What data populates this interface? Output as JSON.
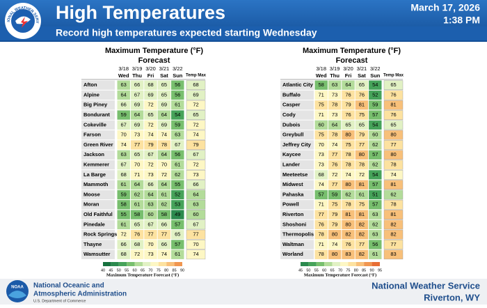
{
  "header": {
    "title": "High Temperatures",
    "subtitle": "Record high temperatures expected starting Wednesday",
    "date": "March 17, 2026",
    "time": "1:38 PM",
    "logo_text": "NATIONAL WEATHER SERVICE"
  },
  "tables": [
    {
      "title": "Maximum Temperature (°F)",
      "subtitle": "Forecast",
      "dates": [
        "3/18",
        "3/19",
        "3/20",
        "3/21",
        "3/22"
      ],
      "days": [
        "Wed",
        "Thu",
        "Fri",
        "Sat",
        "Sun"
      ],
      "max_header": "Temp Max",
      "rows": [
        {
          "name": "Afton",
          "values": [
            63,
            66,
            68,
            65,
            56
          ],
          "max": 68
        },
        {
          "name": "Alpine",
          "values": [
            64,
            67,
            69,
            65,
            56
          ],
          "max": 69
        },
        {
          "name": "Big Piney",
          "values": [
            66,
            69,
            72,
            69,
            61
          ],
          "max": 72
        },
        {
          "name": "Bondurant",
          "values": [
            59,
            64,
            65,
            64,
            54
          ],
          "max": 65
        },
        {
          "name": "Cokeville",
          "values": [
            67,
            69,
            72,
            69,
            59
          ],
          "max": 72
        },
        {
          "name": "Farson",
          "values": [
            70,
            73,
            74,
            74,
            63
          ],
          "max": 74
        },
        {
          "name": "Green River",
          "values": [
            74,
            77,
            79,
            78,
            67
          ],
          "max": 79
        },
        {
          "name": "Jackson",
          "values": [
            63,
            65,
            67,
            64,
            56
          ],
          "max": 67
        },
        {
          "name": "Kemmerer",
          "values": [
            67,
            70,
            72,
            70,
            61
          ],
          "max": 72
        },
        {
          "name": "La Barge",
          "values": [
            68,
            71,
            73,
            72,
            62
          ],
          "max": 73
        },
        {
          "name": "Mammoth",
          "values": [
            61,
            64,
            66,
            64,
            55
          ],
          "max": 66
        },
        {
          "name": "Moose",
          "values": [
            59,
            62,
            64,
            61,
            52
          ],
          "max": 64
        },
        {
          "name": "Moran",
          "values": [
            58,
            61,
            63,
            62,
            53
          ],
          "max": 63
        },
        {
          "name": "Old Faithful",
          "values": [
            55,
            58,
            60,
            58,
            49
          ],
          "max": 60
        },
        {
          "name": "Pinedale",
          "values": [
            61,
            65,
            67,
            66,
            57
          ],
          "max": 67
        },
        {
          "name": "Rock Springs",
          "values": [
            72,
            76,
            77,
            77,
            65
          ],
          "max": 77
        },
        {
          "name": "Thayne",
          "values": [
            66,
            68,
            70,
            66,
            57
          ],
          "max": 70
        },
        {
          "name": "Wamsutter",
          "values": [
            68,
            72,
            73,
            74,
            61
          ],
          "max": 74
        }
      ],
      "legend": {
        "title": "Maximum Temperature Forecast (°F)",
        "ticks": [
          40,
          45,
          50,
          55,
          60,
          65,
          70,
          75,
          80,
          85,
          90
        ],
        "colors": [
          "#17713e",
          "#2b8a4e",
          "#46a35a",
          "#78bf6e",
          "#b3dc9a",
          "#e1f1c4",
          "#fdf7c4",
          "#fde2a0",
          "#f8c07a",
          "#f09650"
        ]
      }
    },
    {
      "title": "Maximum Temperature (°F)",
      "subtitle": "Forecast",
      "dates": [
        "3/18",
        "3/19",
        "3/20",
        "3/21",
        "3/22"
      ],
      "days": [
        "Wed",
        "Thu",
        "Fri",
        "Sat",
        "Sun"
      ],
      "max_header": "Temp Max",
      "rows": [
        {
          "name": "Atlantic City",
          "values": [
            58,
            63,
            64,
            65,
            54
          ],
          "max": 65
        },
        {
          "name": "Buffalo",
          "values": [
            71,
            73,
            76,
            76,
            52
          ],
          "max": 76
        },
        {
          "name": "Casper",
          "values": [
            75,
            78,
            79,
            81,
            59
          ],
          "max": 81
        },
        {
          "name": "Cody",
          "values": [
            71,
            73,
            76,
            75,
            57
          ],
          "max": 76
        },
        {
          "name": "Dubois",
          "values": [
            60,
            64,
            65,
            65,
            54
          ],
          "max": 65
        },
        {
          "name": "Greybull",
          "values": [
            75,
            78,
            80,
            79,
            60
          ],
          "max": 80
        },
        {
          "name": "Jeffrey City",
          "values": [
            70,
            74,
            75,
            77,
            62
          ],
          "max": 77
        },
        {
          "name": "Kaycee",
          "values": [
            73,
            77,
            78,
            80,
            57
          ],
          "max": 80
        },
        {
          "name": "Lander",
          "values": [
            73,
            76,
            78,
            78,
            62
          ],
          "max": 78
        },
        {
          "name": "Meeteetse",
          "values": [
            68,
            72,
            74,
            72,
            54
          ],
          "max": 74
        },
        {
          "name": "Midwest",
          "values": [
            74,
            77,
            80,
            81,
            57
          ],
          "max": 81
        },
        {
          "name": "Pahaska",
          "values": [
            57,
            59,
            62,
            61,
            51
          ],
          "max": 62
        },
        {
          "name": "Powell",
          "values": [
            71,
            75,
            78,
            75,
            57
          ],
          "max": 78
        },
        {
          "name": "Riverton",
          "values": [
            77,
            79,
            81,
            81,
            63
          ],
          "max": 81
        },
        {
          "name": "Shoshoni",
          "values": [
            76,
            79,
            80,
            82,
            62
          ],
          "max": 82
        },
        {
          "name": "Thermopolis",
          "values": [
            78,
            80,
            82,
            82,
            63
          ],
          "max": 82
        },
        {
          "name": "Waltman",
          "values": [
            71,
            74,
            76,
            77,
            56
          ],
          "max": 77
        },
        {
          "name": "Worland",
          "values": [
            78,
            80,
            83,
            82,
            61
          ],
          "max": 83
        }
      ],
      "legend": {
        "title": "Maximum Temperature Forecast (°F)",
        "ticks": [
          45,
          50,
          55,
          60,
          65,
          70,
          75,
          80,
          85,
          90,
          95
        ],
        "colors": [
          "#2b8a4e",
          "#46a35a",
          "#78bf6e",
          "#b3dc9a",
          "#e1f1c4",
          "#fdf7c4",
          "#fde2a0",
          "#f8c07a",
          "#f09650",
          "#e86e35"
        ]
      }
    }
  ],
  "footer": {
    "noaa_logo": "NOAA",
    "agency_line1": "National Oceanic and",
    "agency_line2": "Atmospheric Administration",
    "department": "U.S. Department of Commerce",
    "office": "National Weather Service",
    "location": "Riverton, WY"
  }
}
